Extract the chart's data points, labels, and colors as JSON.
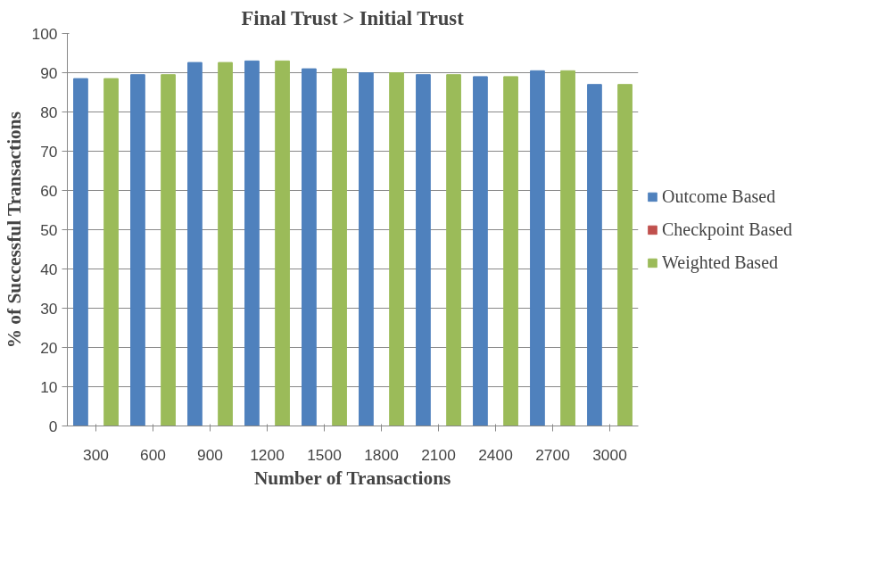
{
  "chart_data": {
    "type": "bar",
    "title": "Final Trust > Initial Trust",
    "xlabel": "Number of Transactions",
    "ylabel": "% of Successful Transactions",
    "categories": [
      "300",
      "600",
      "900",
      "1200",
      "1500",
      "1800",
      "2100",
      "2400",
      "2700",
      "3000"
    ],
    "series": [
      {
        "name": "Outcome Based",
        "color": "#4f81bd",
        "values": [
          88.5,
          89.5,
          92.6,
          93.0,
          91.0,
          90.0,
          89.5,
          89.0,
          90.5,
          87.0
        ]
      },
      {
        "name": "Checkpoint Based",
        "color": "#c0504d",
        "values": [
          null,
          null,
          null,
          null,
          null,
          null,
          null,
          null,
          null,
          null
        ]
      },
      {
        "name": "Weighted Based",
        "color": "#9bbb59",
        "values": [
          88.5,
          89.5,
          92.6,
          93.0,
          91.0,
          90.0,
          89.5,
          89.0,
          90.5,
          87.0
        ]
      }
    ],
    "ylim": [
      0,
      100
    ],
    "yticks": [
      0,
      10,
      20,
      30,
      40,
      50,
      60,
      70,
      80,
      90,
      100
    ],
    "grid": "y",
    "legend": "right"
  }
}
